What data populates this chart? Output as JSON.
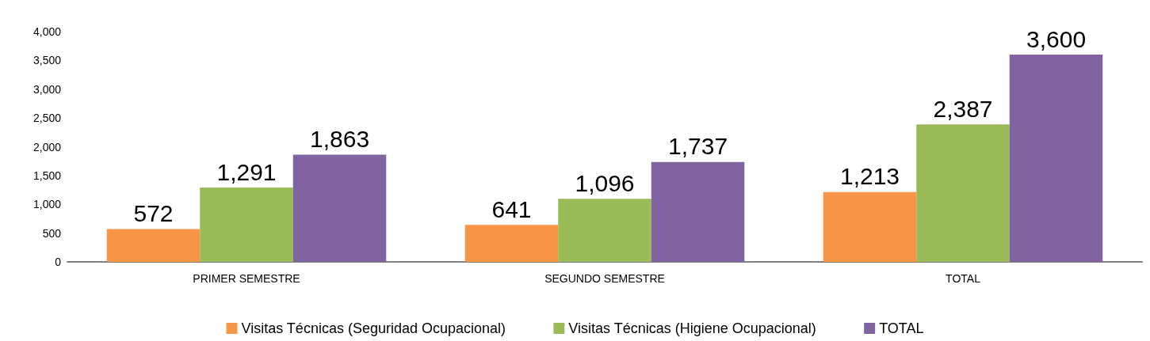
{
  "chart_data": {
    "type": "bar",
    "categories": [
      "PRIMER SEMESTRE",
      "SEGUNDO SEMESTRE",
      "TOTAL"
    ],
    "series": [
      {
        "name": "Visitas Técnicas (Seguridad Ocupacional)",
        "color": "#f79646",
        "values": [
          572,
          641,
          1213
        ],
        "value_labels": [
          "572",
          "641",
          "1,213"
        ]
      },
      {
        "name": "Visitas Técnicas (Higiene Ocupacional)",
        "color": "#9bbb59",
        "values": [
          1291,
          1096,
          2387
        ],
        "value_labels": [
          "1,291",
          "1,096",
          "2,387"
        ]
      },
      {
        "name": "TOTAL",
        "color": "#8064a2",
        "values": [
          1863,
          1737,
          3600
        ],
        "value_labels": [
          "1,863",
          "1,737",
          "3,600"
        ]
      }
    ],
    "ylim": [
      0,
      4000
    ],
    "yticks": [
      0,
      {
        "value": 500,
        "label": "500"
      },
      {
        "value": 1000,
        "label": "1,000"
      },
      {
        "value": 1500,
        "label": "1,500"
      },
      {
        "value": 2000,
        "label": "2,000"
      },
      {
        "value": 2500,
        "label": "2,500"
      },
      {
        "value": 3000,
        "label": "3,000"
      },
      {
        "value": 3500,
        "label": "3,500"
      },
      {
        "value": 4000,
        "label": "4,000"
      }
    ],
    "grid": false,
    "legend": "bottom"
  }
}
